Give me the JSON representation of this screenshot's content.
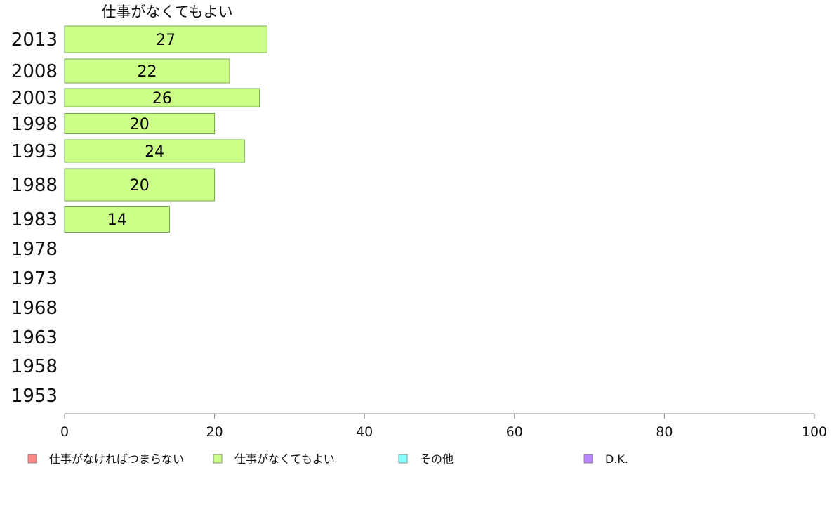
{
  "chart_data": {
    "type": "bar",
    "orientation": "horizontal",
    "title": "仕事がなくてもよい",
    "categories": [
      "2013",
      "2008",
      "2003",
      "1998",
      "1993",
      "1988",
      "1983",
      "1978",
      "1973",
      "1968",
      "1963",
      "1958",
      "1953"
    ],
    "series": [
      {
        "name": "仕事がなくてもよい",
        "color": "#ccff88",
        "values": [
          27,
          22,
          26,
          20,
          24,
          20,
          14,
          null,
          null,
          null,
          null,
          null,
          null
        ]
      }
    ],
    "xlim": [
      0,
      100
    ],
    "xticks": [
      "0",
      "20",
      "40",
      "60",
      "80",
      "100"
    ],
    "grid": false,
    "legend": {
      "position": "bottom",
      "items": [
        {
          "label": "仕事がなければつまらない",
          "color": "#ff8888"
        },
        {
          "label": "仕事がなくてもよい",
          "color": "#ccff88"
        },
        {
          "label": "その他",
          "color": "#88ffff"
        },
        {
          "label": "D.K.",
          "color": "#bb88ff"
        }
      ]
    }
  }
}
